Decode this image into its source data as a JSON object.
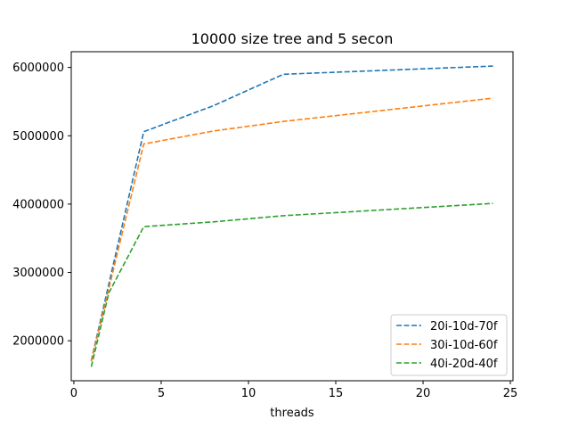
{
  "chart_data": {
    "type": "line",
    "title": "10000 size tree and 5 secon",
    "xlabel": "threads",
    "ylabel": "",
    "xlim": [
      -0.15,
      25.15
    ],
    "ylim": [
      1415000,
      6230000
    ],
    "x_ticks": [
      0,
      5,
      10,
      15,
      20,
      25
    ],
    "y_ticks": [
      2000000,
      3000000,
      4000000,
      5000000,
      6000000
    ],
    "grid": false,
    "legend_position": "lower-right",
    "line_style": "dashed",
    "series": [
      {
        "name": "20i-10d-70f",
        "color": "#1f77b4",
        "points": [
          [
            1,
            1710000
          ],
          [
            4,
            5060000
          ],
          [
            8,
            5440000
          ],
          [
            12,
            5900000
          ],
          [
            24,
            6020000
          ]
        ]
      },
      {
        "name": "30i-10d-60f",
        "color": "#ff7f0e",
        "points": [
          [
            1,
            1700000
          ],
          [
            4,
            4880000
          ],
          [
            8,
            5070000
          ],
          [
            12,
            5210000
          ],
          [
            24,
            5550000
          ]
        ]
      },
      {
        "name": "40i-20d-40f",
        "color": "#2ca02c",
        "points": [
          [
            1,
            1620000
          ],
          [
            2,
            2700000
          ],
          [
            4,
            3670000
          ],
          [
            8,
            3740000
          ],
          [
            12,
            3830000
          ],
          [
            24,
            4010000
          ]
        ]
      }
    ]
  }
}
